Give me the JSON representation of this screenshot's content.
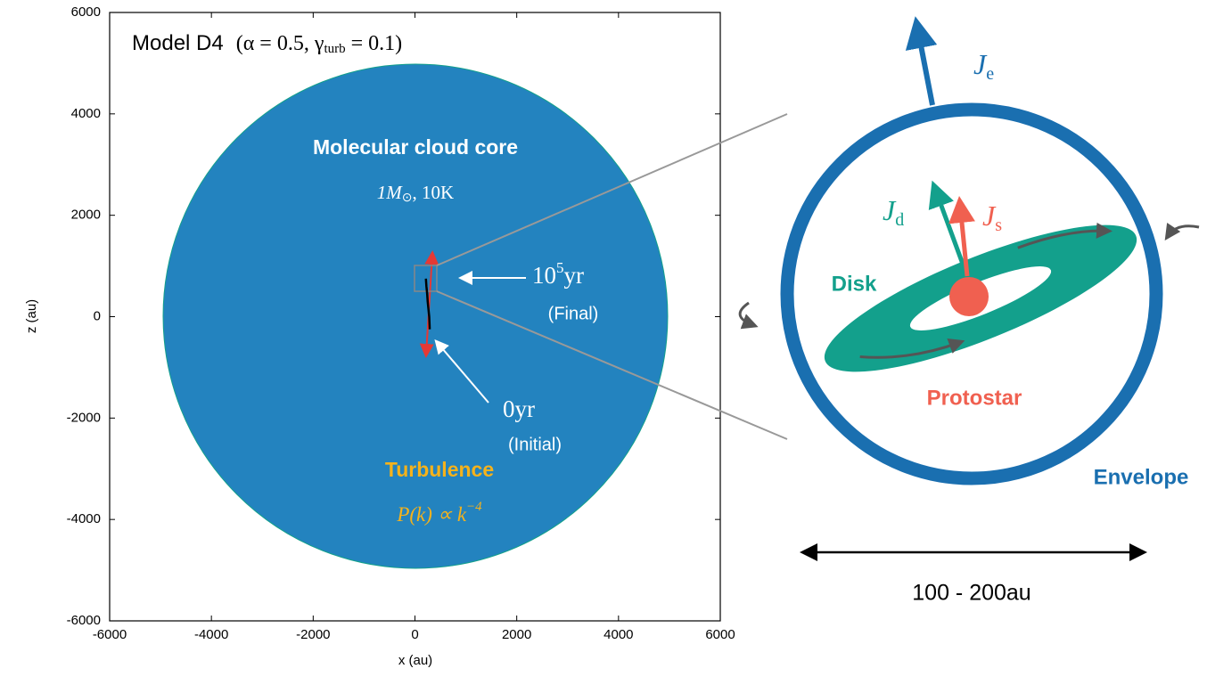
{
  "chart_data": {
    "type": "line",
    "title": [
      "Model D4",
      "(α = 0.5, γ",
      "turb",
      " = 0.1)"
    ],
    "xlabel": "x (au)",
    "ylabel": "z (au)",
    "xlim": [
      -6000,
      6000
    ],
    "ylim": [
      -6000,
      6000
    ],
    "xticks": [
      -6000,
      -4000,
      -2000,
      0,
      2000,
      4000,
      6000
    ],
    "yticks": [
      -6000,
      -4000,
      -2000,
      0,
      2000,
      4000,
      6000
    ],
    "series": [
      {
        "color": "#000000",
        "x": [
          290,
          280,
          265,
          250,
          240,
          225,
          215
        ],
        "values": [
          -250,
          0,
          150,
          300,
          450,
          600,
          750
        ]
      }
    ],
    "annotations": {
      "core": "Molecular cloud core",
      "core_props": [
        "1M",
        "⊙",
        ", 10K"
      ],
      "final_time": [
        "10",
        "5",
        "yr"
      ],
      "final_label": "(Final)",
      "initial_time": "0yr",
      "initial_label": "(Initial)",
      "turbulence": "Turbulence",
      "spectrum": [
        "P(k) ∝ k",
        "−4"
      ]
    }
  },
  "diagram": {
    "je": [
      "J",
      "e"
    ],
    "jd": [
      "J",
      "d"
    ],
    "js": [
      "J",
      "s"
    ],
    "disk": "Disk",
    "protostar": "Protostar",
    "envelope": "Envelope",
    "scale": "100 - 200au"
  }
}
